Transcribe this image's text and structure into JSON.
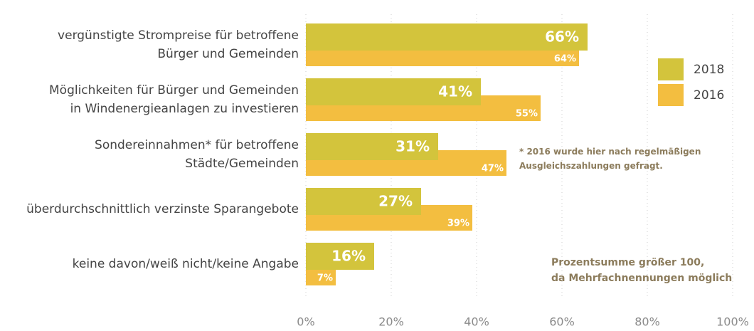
{
  "chart_data": {
    "type": "bar",
    "orientation": "horizontal",
    "categories": [
      "vergünstigte Strompreise für betroffene\nBürger und Gemeinden",
      "Möglichkeiten für Bürger und Gemeinden\nin Windenergieanlagen zu investieren",
      "Sondereinnahmen* für betroffene\nStädte/Gemeinden",
      "überdurchschnittlich verzinste Sparangebote",
      "keine davon/weiß nicht/keine Angabe"
    ],
    "series": [
      {
        "name": "2018",
        "color": "#d3c43c",
        "values": [
          66,
          41,
          31,
          27,
          16
        ],
        "value_labels": [
          "66%",
          "41%",
          "31%",
          "27%",
          "16%"
        ]
      },
      {
        "name": "2016",
        "color": "#f3be40",
        "values": [
          64,
          55,
          47,
          39,
          7
        ],
        "value_labels": [
          "64%",
          "55%",
          "47%",
          "39%",
          "7%"
        ]
      }
    ],
    "xlim": [
      0,
      100
    ],
    "xticks": [
      {
        "value": 0,
        "label": "0%"
      },
      {
        "value": 20,
        "label": "20%"
      },
      {
        "value": 40,
        "label": "40%"
      },
      {
        "value": 60,
        "label": "60%"
      },
      {
        "value": 80,
        "label": "80%"
      },
      {
        "value": 100,
        "label": "100%"
      }
    ],
    "grid": true,
    "legend": "right",
    "annotations": [
      "* 2016 wurde hier nach regelmäßigen\nAusgleichszahlungen gefragt.",
      "Prozentsumme größer 100,\nda Mehrfachnennungen möglich"
    ]
  }
}
